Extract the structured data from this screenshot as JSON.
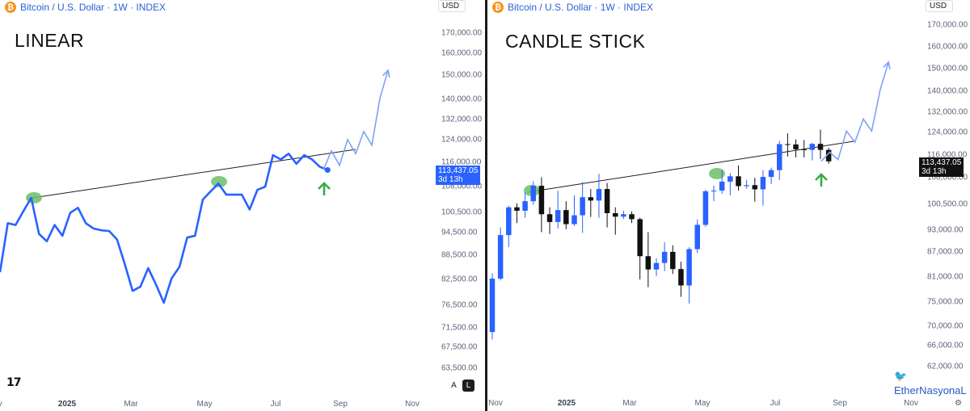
{
  "header": {
    "symbol": "Bitcoin / U.S. Dollar · 1W · INDEX",
    "icon": "bitcoin-icon",
    "currency": "USD"
  },
  "annotations": {
    "linear_title": "LINEAR",
    "candle_title": "CANDLE STICK",
    "watermark": "EtherNasyonaL",
    "support_color": "#1f1f1f",
    "highlight_color": "#6abf69",
    "arrow_color": "#3daa4a",
    "line_color": "#2962ff",
    "projection_color": "#7fa3f2",
    "up_color": "#2962ff",
    "down_color": "#111111"
  },
  "controls": {
    "auto_label": "A",
    "log_label": "L",
    "settings_icon": "gear-icon",
    "tv_logo": "17"
  },
  "chart_data": [
    {
      "type": "line",
      "title": "LINEAR",
      "price_label": "113,437.05",
      "countdown": "3d 13h",
      "y_ticks": [
        "170,000.00",
        "160,000.00",
        "150,000.00",
        "140,000.00",
        "132,000.00",
        "124,000.00",
        "116,000.00",
        "108,000.00",
        "100,500.00",
        "94,500.00",
        "88,500.00",
        "82,500.00",
        "76,500.00",
        "71,500.00",
        "67,500.00",
        "63,500.00"
      ],
      "x_ticks": [
        "v",
        "2025",
        "Mar",
        "May",
        "Jul",
        "Sep",
        "Nov"
      ],
      "series": [
        {
          "values": [
            84000,
            97000,
            96500,
            100500,
            104500,
            94000,
            92000,
            96500,
            93500,
            100000,
            101500,
            97000,
            95500,
            95000,
            94800,
            92500,
            86000,
            79500,
            80500,
            85000,
            81000,
            76800,
            82500,
            85300,
            93000,
            93500,
            104000,
            106500,
            109000,
            105500,
            105500,
            105500,
            101000,
            107000,
            108000,
            118500,
            117000,
            119000,
            115500,
            118500,
            117000,
            114500,
            113437
          ]
        },
        {
          "values": [
            113437,
            120000,
            115000,
            124000,
            119000,
            127000,
            122000,
            140000,
            152000
          ]
        }
      ]
    },
    {
      "type": "candlestick",
      "title": "CANDLE STICK",
      "price_label": "113,437.05",
      "countdown": "3d 13h",
      "y_ticks": [
        "170,000.00",
        "160,000.00",
        "150,000.00",
        "140,000.00",
        "132,000.00",
        "124,000.00",
        "116,000.00",
        "108,000.00",
        "100,500.00",
        "93,000.00",
        "87,000.00",
        "81,000.00",
        "75,000.00",
        "70,000.00",
        "66,000.00",
        "62,000.00"
      ],
      "x_ticks": [
        "Nov",
        "2025",
        "Mar",
        "May",
        "Jul",
        "Sep",
        "Nov"
      ],
      "candles": [
        [
          68500,
          80200,
          67000,
          81500
        ],
        [
          80200,
          91200,
          79800,
          93300
        ],
        [
          91200,
          99000,
          88000,
          99500
        ],
        [
          99000,
          98000,
          94500,
          100200
        ],
        [
          98000,
          100800,
          96000,
          103500
        ],
        [
          100800,
          105500,
          99800,
          106900
        ],
        [
          105500,
          97000,
          92000,
          108200
        ],
        [
          97000,
          94800,
          91500,
          99000
        ],
        [
          94800,
          98200,
          93000,
          104000
        ],
        [
          98200,
          94200,
          92800,
          100800
        ],
        [
          94200,
          96700,
          93700,
          102500
        ],
        [
          96700,
          102000,
          91800,
          106700
        ],
        [
          102000,
          101000,
          96200,
          104500
        ],
        [
          101000,
          104500,
          96000,
          109300
        ],
        [
          104500,
          97300,
          93300,
          106400
        ],
        [
          97300,
          96300,
          91300,
          99000
        ],
        [
          96300,
          97000,
          95600,
          98000
        ],
        [
          97000,
          95600,
          94500,
          97800
        ],
        [
          95600,
          85700,
          80000,
          96000
        ],
        [
          85700,
          82400,
          78200,
          92000
        ],
        [
          82400,
          84000,
          80800,
          85200
        ],
        [
          84000,
          86800,
          82000,
          89300
        ],
        [
          86800,
          82500,
          81300,
          88500
        ],
        [
          82500,
          78600,
          76000,
          84300
        ],
        [
          78600,
          87500,
          74500,
          88000
        ],
        [
          87500,
          94000,
          86500,
          95500
        ],
        [
          94000,
          103800,
          93500,
          104300
        ],
        [
          103800,
          104000,
          100800,
          105500
        ],
        [
          104000,
          106800,
          103000,
          110500
        ],
        [
          106800,
          108500,
          102600,
          109500
        ],
        [
          108500,
          105400,
          104000,
          112000
        ],
        [
          105400,
          105700,
          104600,
          107400
        ],
        [
          105700,
          104400,
          100700,
          108000
        ],
        [
          104400,
          108300,
          99500,
          110500
        ],
        [
          108300,
          110500,
          106000,
          111300
        ],
        [
          110500,
          119300,
          107300,
          120500
        ],
        [
          119300,
          119200,
          115000,
          123200
        ],
        [
          119200,
          117500,
          114700,
          121000
        ],
        [
          117500,
          117300,
          114700,
          120800
        ],
        [
          117300,
          119400,
          113700,
          119800
        ],
        [
          119400,
          117300,
          114200,
          124500
        ],
        [
          117300,
          113400,
          112600,
          118000
        ]
      ],
      "projection": [
        113437,
        116500,
        114000,
        124000,
        120000,
        128500,
        124000,
        140000,
        152000
      ]
    }
  ]
}
